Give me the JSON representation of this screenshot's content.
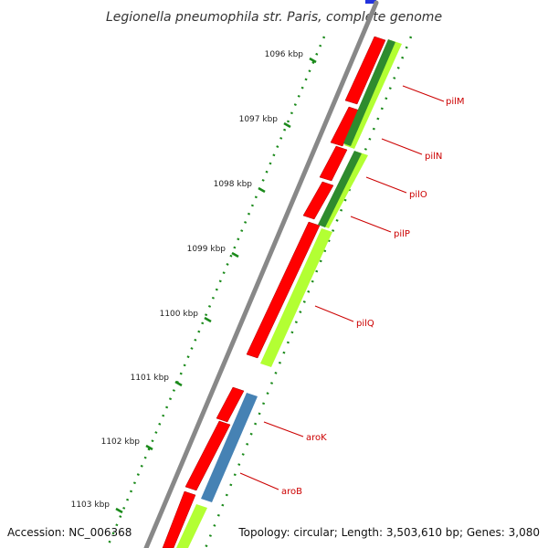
{
  "title": "Legionella pneumophila str. Paris, complete genome",
  "footer": {
    "accession": "Accession: NC_006368",
    "topology": "Topology: circular; Length: 3,503,610 bp; Genes: 3,080"
  },
  "colors": {
    "backbone": "#888888",
    "cds_forward": "#ff0000",
    "gene_track_green": "#b3ff33",
    "gene_track_darkgreen": "#2e8b2e",
    "gene_track_blue": "#4682b4",
    "tick": "#1a8a1a",
    "label": "#cc0000"
  },
  "scale": {
    "ticks": [
      {
        "label": "1096 kbp"
      },
      {
        "label": "1097 kbp"
      },
      {
        "label": "1098 kbp"
      },
      {
        "label": "1099 kbp"
      },
      {
        "label": "1100 kbp"
      },
      {
        "label": "1101 kbp"
      },
      {
        "label": "1102 kbp"
      },
      {
        "label": "1103 kbp"
      }
    ]
  },
  "genes": [
    {
      "name": "pilM"
    },
    {
      "name": "pilN"
    },
    {
      "name": "pilO"
    },
    {
      "name": "pilP"
    },
    {
      "name": "pilQ"
    },
    {
      "name": "aroK"
    },
    {
      "name": "aroB"
    }
  ]
}
